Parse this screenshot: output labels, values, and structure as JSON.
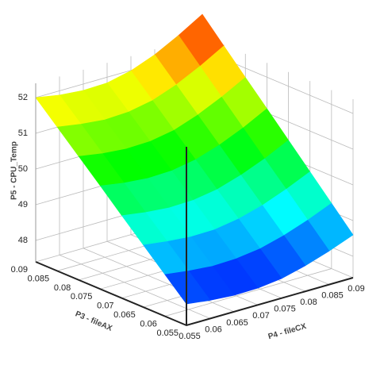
{
  "chart_data": {
    "type": "surface",
    "zlabel": "P5 - CPU_Temp",
    "xlabel": "P3 - fileAX",
    "ylabel": "P4 - fileCX",
    "x": [
      0.055,
      0.06,
      0.065,
      0.07,
      0.075,
      0.08,
      0.085,
      0.09
    ],
    "y": [
      0.055,
      0.06,
      0.065,
      0.07,
      0.075,
      0.08,
      0.085,
      0.09
    ],
    "z": [
      [
        48.0,
        47.91,
        47.86,
        47.87,
        47.95,
        48.12,
        48.34,
        48.6
      ],
      [
        48.57,
        48.48,
        48.42,
        48.44,
        48.53,
        48.71,
        48.95,
        49.23
      ],
      [
        49.14,
        49.05,
        48.99,
        49.0,
        49.11,
        49.3,
        49.56,
        49.86
      ],
      [
        49.71,
        49.61,
        49.55,
        49.57,
        49.68,
        49.89,
        50.16,
        50.49
      ],
      [
        50.29,
        50.18,
        50.12,
        50.14,
        50.26,
        50.48,
        50.77,
        51.12
      ],
      [
        50.86,
        50.75,
        50.69,
        50.71,
        50.83,
        51.07,
        51.38,
        51.74
      ],
      [
        51.43,
        51.32,
        51.25,
        51.28,
        51.41,
        51.66,
        51.99,
        52.37
      ],
      [
        52.0,
        51.88,
        51.82,
        51.84,
        51.99,
        52.25,
        52.6,
        53.0
      ]
    ],
    "xlim": [
      0.055,
      0.09
    ],
    "xticks": [
      0.055,
      0.06,
      0.065,
      0.07,
      0.075,
      0.08,
      0.085,
      0.09
    ],
    "ylim": [
      0.055,
      0.09
    ],
    "yticks": [
      0.055,
      0.06,
      0.065,
      0.07,
      0.075,
      0.08,
      0.085,
      0.09
    ],
    "zlim": [
      47.4,
      52.4
    ],
    "zticks": [
      48,
      49,
      50,
      51,
      52
    ],
    "colormap": [
      "#0000ff",
      "#00ffff",
      "#00ff00",
      "#ffff00",
      "#ff0000"
    ],
    "grid": true
  }
}
